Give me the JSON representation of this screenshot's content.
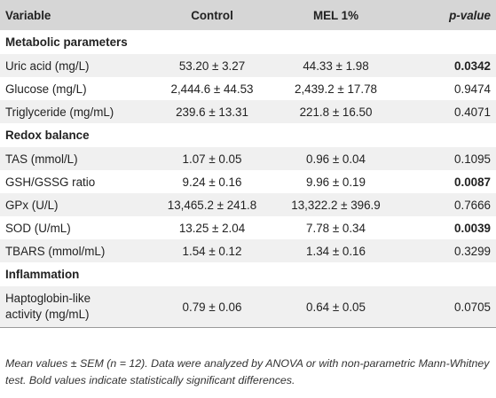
{
  "header": {
    "variable": "Variable",
    "control": "Control",
    "mel": "MEL 1%",
    "pvalue": "p-value"
  },
  "sections": [
    {
      "title": "Metabolic parameters"
    },
    {
      "title": "Redox balance"
    },
    {
      "title": "Inflammation"
    }
  ],
  "rows": [
    {
      "variable": "Uric acid (mg/L)",
      "control": "53.20 ± 3.27",
      "mel": "44.33 ± 1.98",
      "p": "0.0342"
    },
    {
      "variable": "Glucose (mg/L)",
      "control": "2,444.6 ± 44.53",
      "mel": "2,439.2 ± 17.78",
      "p": "0.9474"
    },
    {
      "variable": "Triglyceride (mg/mL)",
      "control": "239.6 ± 13.31",
      "mel": "221.8 ± 16.50",
      "p": "0.4071"
    },
    {
      "variable": "TAS (mmol/L)",
      "control": "1.07 ± 0.05",
      "mel": "0.96 ± 0.04",
      "p": "0.1095"
    },
    {
      "variable": "GSH/GSSG ratio",
      "control": "9.24 ± 0.16",
      "mel": "9.96 ± 0.19",
      "p": "0.0087"
    },
    {
      "variable": "GPx (U/L)",
      "control": "13,465.2 ± 241.8",
      "mel": "13,322.2 ± 396.9",
      "p": "0.7666"
    },
    {
      "variable": "SOD (U/mL)",
      "control": "13.25 ± 2.04",
      "mel": "7.78 ± 0.34",
      "p": "0.0039"
    },
    {
      "variable": "TBARS (mmol/mL)",
      "control": "1.54 ± 0.12",
      "mel": "1.34 ± 0.16",
      "p": "0.3299"
    },
    {
      "variable_line1": "Haptoglobin-like",
      "variable_line2": "activity (mg/mL)",
      "control": "0.79 ± 0.06",
      "mel": "0.64 ± 0.05",
      "p": "0.0705"
    }
  ],
  "footnote": "Mean values ± SEM (n = 12). Data were analyzed by ANOVA or with non-parametric Mann-Whitney test. Bold values indicate statistically significant differences."
}
